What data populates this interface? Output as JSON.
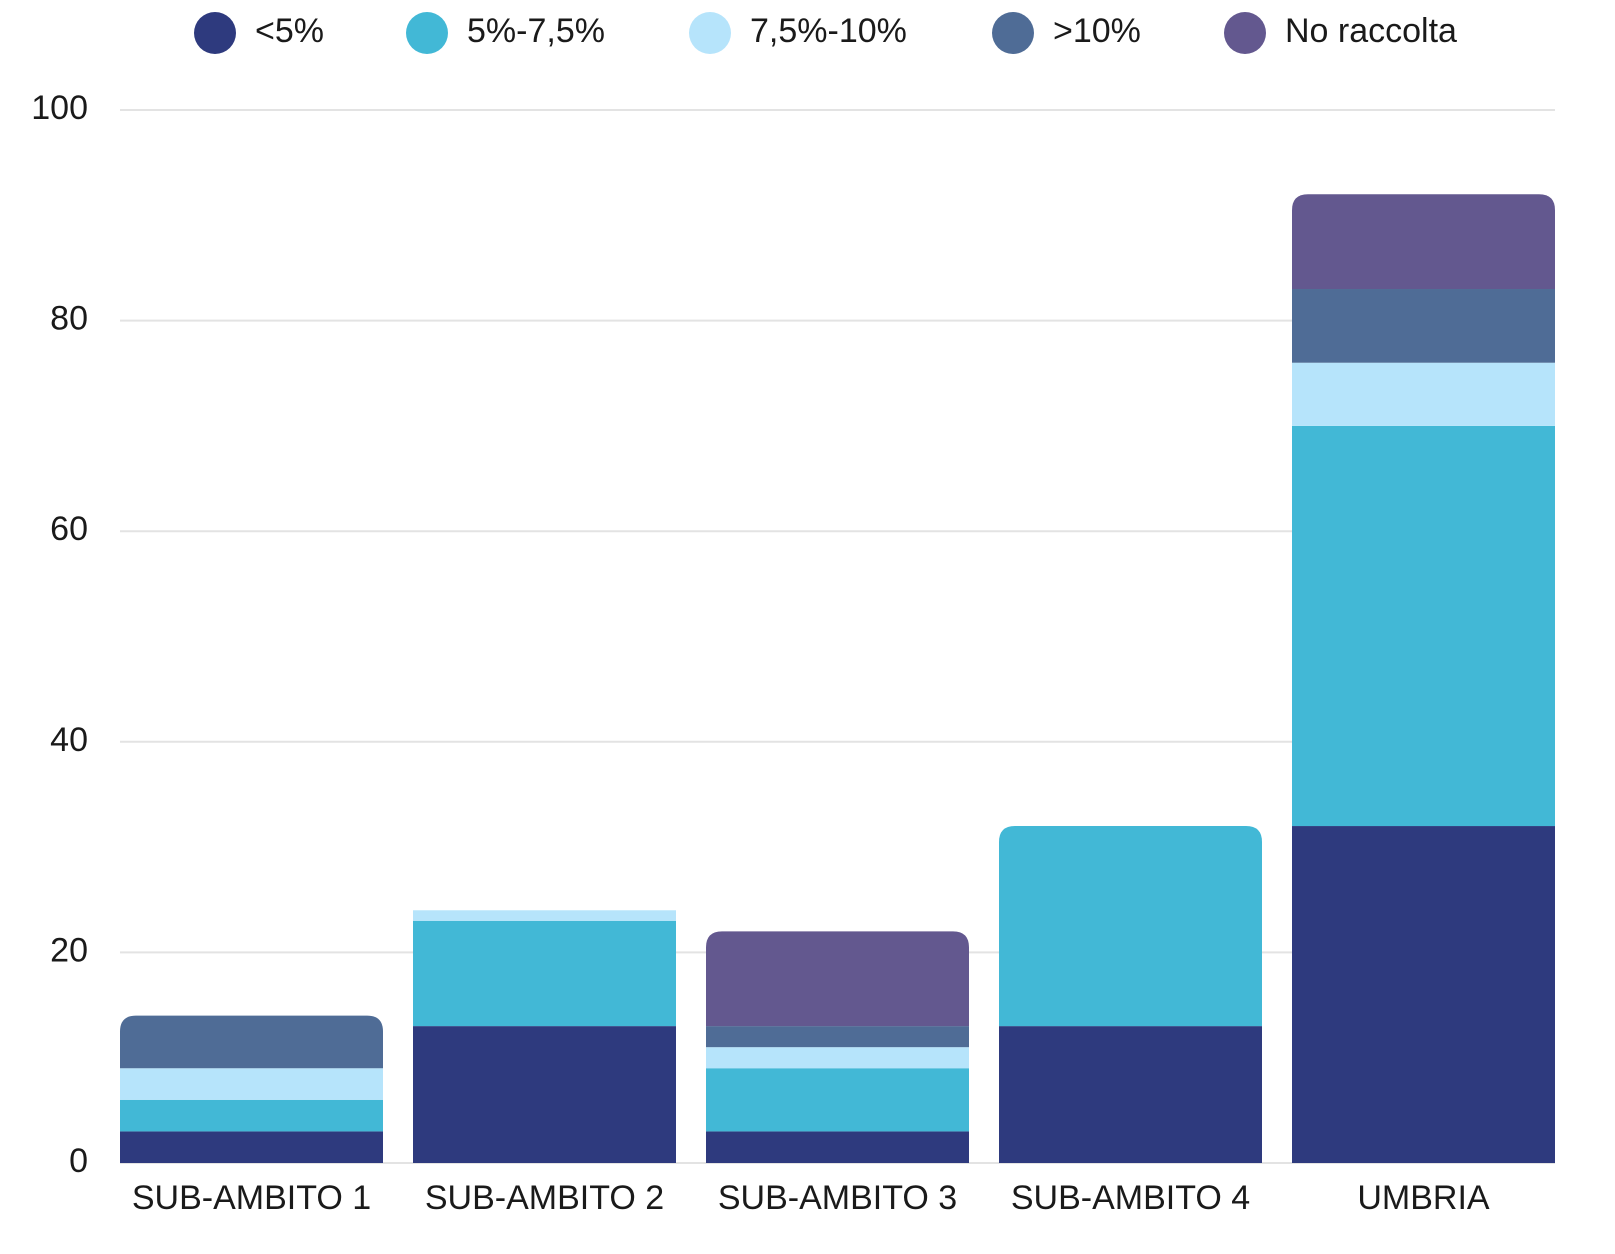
{
  "chart_data": {
    "type": "stacked_bar",
    "categories": [
      "SUB-AMBITO 1",
      "SUB-AMBITO 2",
      "SUB-AMBITO 3",
      "SUB-AMBITO 4",
      "UMBRIA"
    ],
    "series": [
      {
        "name": "<5%",
        "color": "#2e3a7e",
        "values": [
          3,
          13,
          3,
          13,
          32
        ]
      },
      {
        "name": "5%-7,5%",
        "color": "#42b8d6",
        "values": [
          3,
          10,
          6,
          19,
          38
        ]
      },
      {
        "name": "7,5%-10%",
        "color": "#b6e4fb",
        "values": [
          3,
          1,
          2,
          0,
          6
        ]
      },
      {
        "name": ">10%",
        "color": "#4f6c96",
        "values": [
          5,
          0,
          2,
          0,
          7
        ]
      },
      {
        "name": "No raccolta",
        "color": "#63588f",
        "values": [
          0,
          0,
          9,
          0,
          9
        ]
      }
    ],
    "ylim": [
      0,
      100
    ],
    "yticks": [
      0,
      20,
      40,
      60,
      80,
      100
    ],
    "grid": true,
    "legend": "top"
  }
}
